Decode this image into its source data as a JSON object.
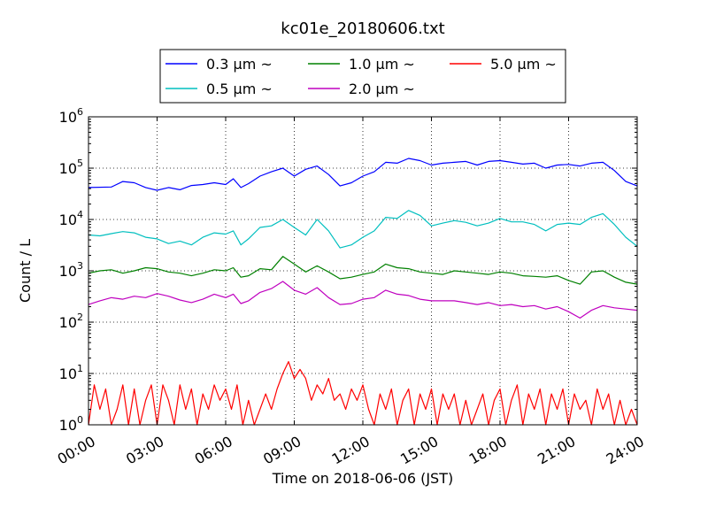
{
  "chart_data": {
    "type": "line",
    "title": "kc01e_20180606.txt",
    "xlabel": "Time on 2018-06-06 (JST)",
    "ylabel": "Count / L",
    "yscale": "log",
    "ylim": [
      1,
      1000000
    ],
    "xlim": [
      "00:00",
      "24:00"
    ],
    "grid": true,
    "legend_position": "top-center",
    "xticks": [
      "00:00",
      "03:00",
      "06:00",
      "09:00",
      "12:00",
      "15:00",
      "18:00",
      "21:00",
      "24:00"
    ],
    "yticks": [
      {
        "base": "10",
        "exp": "0"
      },
      {
        "base": "10",
        "exp": "1"
      },
      {
        "base": "10",
        "exp": "2"
      },
      {
        "base": "10",
        "exp": "3"
      },
      {
        "base": "10",
        "exp": "4"
      },
      {
        "base": "10",
        "exp": "5"
      },
      {
        "base": "10",
        "exp": "6"
      }
    ],
    "series": [
      {
        "name": "0.3 μm ~",
        "color": "#0000ff",
        "points": [
          [
            "00:00",
            42000
          ],
          [
            "01:00",
            43000
          ],
          [
            "01:30",
            55000
          ],
          [
            "02:00",
            52000
          ],
          [
            "02:30",
            42000
          ],
          [
            "03:00",
            37000
          ],
          [
            "03:30",
            42000
          ],
          [
            "04:00",
            38000
          ],
          [
            "04:30",
            46000
          ],
          [
            "05:00",
            48000
          ],
          [
            "05:30",
            52000
          ],
          [
            "06:00",
            48000
          ],
          [
            "06:20",
            62000
          ],
          [
            "06:40",
            42000
          ],
          [
            "07:00",
            50000
          ],
          [
            "07:30",
            70000
          ],
          [
            "08:00",
            85000
          ],
          [
            "08:30",
            100000
          ],
          [
            "09:00",
            70000
          ],
          [
            "09:30",
            95000
          ],
          [
            "10:00",
            110000
          ],
          [
            "10:30",
            75000
          ],
          [
            "11:00",
            45000
          ],
          [
            "11:30",
            52000
          ],
          [
            "12:00",
            70000
          ],
          [
            "12:30",
            85000
          ],
          [
            "13:00",
            130000
          ],
          [
            "13:30",
            125000
          ],
          [
            "14:00",
            155000
          ],
          [
            "14:30",
            140000
          ],
          [
            "15:00",
            115000
          ],
          [
            "15:30",
            125000
          ],
          [
            "16:00",
            130000
          ],
          [
            "16:30",
            135000
          ],
          [
            "17:00",
            115000
          ],
          [
            "17:30",
            135000
          ],
          [
            "18:00",
            140000
          ],
          [
            "18:30",
            130000
          ],
          [
            "19:00",
            120000
          ],
          [
            "19:30",
            125000
          ],
          [
            "20:00",
            100000
          ],
          [
            "20:30",
            115000
          ],
          [
            "21:00",
            118000
          ],
          [
            "21:30",
            110000
          ],
          [
            "22:00",
            125000
          ],
          [
            "22:30",
            130000
          ],
          [
            "23:00",
            90000
          ],
          [
            "23:30",
            55000
          ],
          [
            "24:00",
            45000
          ]
        ]
      },
      {
        "name": "0.5 μm ~",
        "color": "#00bfbf",
        "points": [
          [
            "00:00",
            5000
          ],
          [
            "00:30",
            4800
          ],
          [
            "01:00",
            5300
          ],
          [
            "01:30",
            5800
          ],
          [
            "02:00",
            5500
          ],
          [
            "02:30",
            4500
          ],
          [
            "03:00",
            4200
          ],
          [
            "03:30",
            3400
          ],
          [
            "04:00",
            3800
          ],
          [
            "04:30",
            3200
          ],
          [
            "05:00",
            4500
          ],
          [
            "05:30",
            5500
          ],
          [
            "06:00",
            5200
          ],
          [
            "06:20",
            6000
          ],
          [
            "06:40",
            3200
          ],
          [
            "07:00",
            4200
          ],
          [
            "07:30",
            7000
          ],
          [
            "08:00",
            7500
          ],
          [
            "08:30",
            10000
          ],
          [
            "09:00",
            7000
          ],
          [
            "09:30",
            5000
          ],
          [
            "10:00",
            10000
          ],
          [
            "10:30",
            6000
          ],
          [
            "11:00",
            2800
          ],
          [
            "11:30",
            3200
          ],
          [
            "12:00",
            4500
          ],
          [
            "12:30",
            6000
          ],
          [
            "13:00",
            11000
          ],
          [
            "13:30",
            10500
          ],
          [
            "14:00",
            15000
          ],
          [
            "14:30",
            12000
          ],
          [
            "15:00",
            7500
          ],
          [
            "15:30",
            8500
          ],
          [
            "16:00",
            9500
          ],
          [
            "16:30",
            8800
          ],
          [
            "17:00",
            7500
          ],
          [
            "17:30",
            8500
          ],
          [
            "18:00",
            10500
          ],
          [
            "18:30",
            9000
          ],
          [
            "19:00",
            9000
          ],
          [
            "19:30",
            8000
          ],
          [
            "20:00",
            6000
          ],
          [
            "20:30",
            8000
          ],
          [
            "21:00",
            8500
          ],
          [
            "21:30",
            8000
          ],
          [
            "22:00",
            11000
          ],
          [
            "22:30",
            13000
          ],
          [
            "23:00",
            8000
          ],
          [
            "23:30",
            4500
          ],
          [
            "24:00",
            3000
          ]
        ]
      },
      {
        "name": "1.0 μm ~",
        "color": "#008000",
        "points": [
          [
            "00:00",
            900
          ],
          [
            "00:30",
            1000
          ],
          [
            "01:00",
            1050
          ],
          [
            "01:30",
            900
          ],
          [
            "02:00",
            1000
          ],
          [
            "02:30",
            1150
          ],
          [
            "03:00",
            1100
          ],
          [
            "03:30",
            950
          ],
          [
            "04:00",
            900
          ],
          [
            "04:30",
            800
          ],
          [
            "05:00",
            900
          ],
          [
            "05:30",
            1050
          ],
          [
            "06:00",
            1000
          ],
          [
            "06:20",
            1150
          ],
          [
            "06:40",
            750
          ],
          [
            "07:00",
            800
          ],
          [
            "07:30",
            1100
          ],
          [
            "08:00",
            1050
          ],
          [
            "08:30",
            1900
          ],
          [
            "09:00",
            1350
          ],
          [
            "09:30",
            950
          ],
          [
            "10:00",
            1250
          ],
          [
            "10:30",
            950
          ],
          [
            "11:00",
            700
          ],
          [
            "11:30",
            750
          ],
          [
            "12:00",
            850
          ],
          [
            "12:30",
            950
          ],
          [
            "13:00",
            1350
          ],
          [
            "13:30",
            1150
          ],
          [
            "14:00",
            1100
          ],
          [
            "14:30",
            950
          ],
          [
            "15:00",
            900
          ],
          [
            "15:30",
            850
          ],
          [
            "16:00",
            1000
          ],
          [
            "16:30",
            950
          ],
          [
            "17:00",
            900
          ],
          [
            "17:30",
            850
          ],
          [
            "18:00",
            950
          ],
          [
            "18:30",
            900
          ],
          [
            "19:00",
            800
          ],
          [
            "19:30",
            780
          ],
          [
            "20:00",
            750
          ],
          [
            "20:30",
            800
          ],
          [
            "21:00",
            650
          ],
          [
            "21:30",
            550
          ],
          [
            "22:00",
            950
          ],
          [
            "22:30",
            1000
          ],
          [
            "23:00",
            750
          ],
          [
            "23:30",
            600
          ],
          [
            "24:00",
            550
          ]
        ]
      },
      {
        "name": "2.0 μm ~",
        "color": "#bf00bf",
        "points": [
          [
            "00:00",
            220
          ],
          [
            "00:30",
            260
          ],
          [
            "01:00",
            300
          ],
          [
            "01:30",
            280
          ],
          [
            "02:00",
            320
          ],
          [
            "02:30",
            300
          ],
          [
            "03:00",
            360
          ],
          [
            "03:30",
            320
          ],
          [
            "04:00",
            270
          ],
          [
            "04:30",
            240
          ],
          [
            "05:00",
            280
          ],
          [
            "05:30",
            350
          ],
          [
            "06:00",
            300
          ],
          [
            "06:20",
            350
          ],
          [
            "06:40",
            230
          ],
          [
            "07:00",
            260
          ],
          [
            "07:30",
            380
          ],
          [
            "08:00",
            450
          ],
          [
            "08:30",
            620
          ],
          [
            "09:00",
            420
          ],
          [
            "09:30",
            350
          ],
          [
            "10:00",
            470
          ],
          [
            "10:30",
            300
          ],
          [
            "11:00",
            220
          ],
          [
            "11:30",
            230
          ],
          [
            "12:00",
            280
          ],
          [
            "12:30",
            300
          ],
          [
            "13:00",
            420
          ],
          [
            "13:30",
            350
          ],
          [
            "14:00",
            330
          ],
          [
            "14:30",
            280
          ],
          [
            "15:00",
            260
          ],
          [
            "15:30",
            260
          ],
          [
            "16:00",
            260
          ],
          [
            "16:30",
            240
          ],
          [
            "17:00",
            220
          ],
          [
            "17:30",
            240
          ],
          [
            "18:00",
            210
          ],
          [
            "18:30",
            220
          ],
          [
            "19:00",
            200
          ],
          [
            "19:30",
            210
          ],
          [
            "20:00",
            180
          ],
          [
            "20:30",
            200
          ],
          [
            "21:00",
            160
          ],
          [
            "21:30",
            120
          ],
          [
            "22:00",
            170
          ],
          [
            "22:30",
            210
          ],
          [
            "23:00",
            190
          ],
          [
            "23:30",
            180
          ],
          [
            "24:00",
            170
          ]
        ]
      },
      {
        "name": "5.0 μm ~",
        "color": "#ff0000",
        "points": [
          [
            "00:00",
            1
          ],
          [
            "00:15",
            6
          ],
          [
            "00:30",
            2
          ],
          [
            "00:45",
            5
          ],
          [
            "01:00",
            1
          ],
          [
            "01:15",
            2
          ],
          [
            "01:30",
            6
          ],
          [
            "01:45",
            1
          ],
          [
            "02:00",
            5
          ],
          [
            "02:15",
            1
          ],
          [
            "02:30",
            3
          ],
          [
            "02:45",
            6
          ],
          [
            "03:00",
            1
          ],
          [
            "03:15",
            6
          ],
          [
            "03:30",
            3
          ],
          [
            "03:45",
            1
          ],
          [
            "04:00",
            6
          ],
          [
            "04:15",
            2
          ],
          [
            "04:30",
            5
          ],
          [
            "04:45",
            1
          ],
          [
            "05:00",
            4
          ],
          [
            "05:15",
            2
          ],
          [
            "05:30",
            6
          ],
          [
            "05:45",
            3
          ],
          [
            "06:00",
            5
          ],
          [
            "06:15",
            2
          ],
          [
            "06:30",
            6
          ],
          [
            "06:45",
            1
          ],
          [
            "07:00",
            3
          ],
          [
            "07:15",
            1
          ],
          [
            "07:30",
            2
          ],
          [
            "07:45",
            4
          ],
          [
            "08:00",
            2
          ],
          [
            "08:15",
            5
          ],
          [
            "08:30",
            10
          ],
          [
            "08:45",
            17
          ],
          [
            "09:00",
            8
          ],
          [
            "09:15",
            12
          ],
          [
            "09:30",
            8
          ],
          [
            "09:45",
            3
          ],
          [
            "10:00",
            6
          ],
          [
            "10:15",
            4
          ],
          [
            "10:30",
            8
          ],
          [
            "10:45",
            3
          ],
          [
            "11:00",
            4
          ],
          [
            "11:15",
            2
          ],
          [
            "11:30",
            5
          ],
          [
            "11:45",
            3
          ],
          [
            "12:00",
            6
          ],
          [
            "12:15",
            2
          ],
          [
            "12:30",
            1
          ],
          [
            "12:45",
            4
          ],
          [
            "13:00",
            2
          ],
          [
            "13:15",
            5
          ],
          [
            "13:30",
            1
          ],
          [
            "13:45",
            3
          ],
          [
            "14:00",
            5
          ],
          [
            "14:15",
            1
          ],
          [
            "14:30",
            4
          ],
          [
            "14:45",
            2
          ],
          [
            "15:00",
            5
          ],
          [
            "15:15",
            1
          ],
          [
            "15:30",
            4
          ],
          [
            "15:45",
            2
          ],
          [
            "16:00",
            4
          ],
          [
            "16:15",
            1
          ],
          [
            "16:30",
            3
          ],
          [
            "16:45",
            1
          ],
          [
            "17:00",
            2
          ],
          [
            "17:15",
            4
          ],
          [
            "17:30",
            1
          ],
          [
            "17:45",
            3
          ],
          [
            "18:00",
            5
          ],
          [
            "18:15",
            1
          ],
          [
            "18:30",
            3
          ],
          [
            "18:45",
            6
          ],
          [
            "19:00",
            1
          ],
          [
            "19:15",
            4
          ],
          [
            "19:30",
            2
          ],
          [
            "19:45",
            5
          ],
          [
            "20:00",
            1
          ],
          [
            "20:15",
            4
          ],
          [
            "20:30",
            2
          ],
          [
            "20:45",
            5
          ],
          [
            "21:00",
            1
          ],
          [
            "21:15",
            4
          ],
          [
            "21:30",
            2
          ],
          [
            "21:45",
            3
          ],
          [
            "22:00",
            1
          ],
          [
            "22:15",
            5
          ],
          [
            "22:30",
            2
          ],
          [
            "22:45",
            4
          ],
          [
            "23:00",
            1
          ],
          [
            "23:15",
            3
          ],
          [
            "23:30",
            1
          ],
          [
            "23:45",
            2
          ],
          [
            "24:00",
            1
          ]
        ]
      }
    ]
  }
}
